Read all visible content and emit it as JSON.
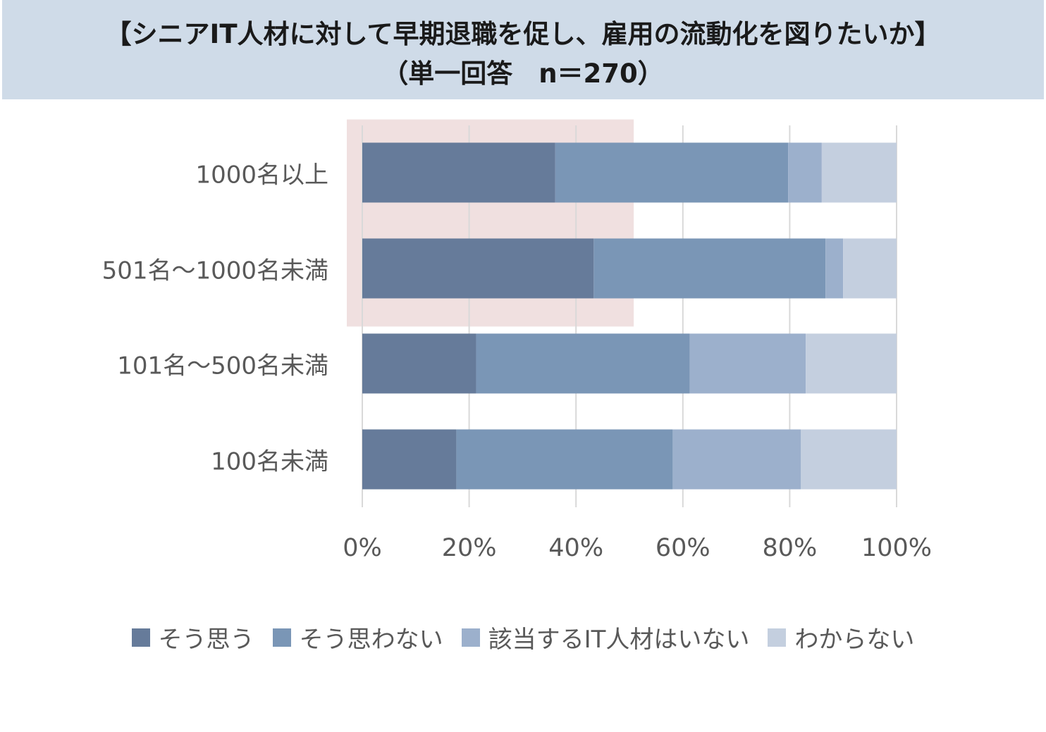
{
  "header": {
    "title_line1": "【シニアIT人材に対して早期退職を促し、雇用の流動化を図りたいか】",
    "title_line2": "（単一回答　n＝270）"
  },
  "colors": {
    "header_bg": "#cfdbe8",
    "highlight": "#f0e0e0",
    "series": [
      "#667b9a",
      "#7a96b6",
      "#9cb0cc",
      "#c4cfdf"
    ],
    "grid": "#d9d9d9"
  },
  "chart_data": {
    "type": "bar",
    "orientation": "horizontal-stacked-100",
    "title": "【シニアIT人材に対して早期退職を促し、雇用の流動化を図りたいか】（単一回答　n＝270）",
    "categories": [
      "1000名以上",
      "501名～1000名未満",
      "101名～500名未満",
      "100名未満"
    ],
    "series": [
      {
        "name": "そう思う",
        "values": [
          36.1,
          43.3,
          21.3,
          17.6
        ]
      },
      {
        "name": "そう思わない",
        "values": [
          43.6,
          43.4,
          40.0,
          40.5
        ]
      },
      {
        "name": "該当するIT人材はいない",
        "values": [
          6.3,
          3.3,
          21.7,
          24.0
        ]
      },
      {
        "name": "わからない",
        "values": [
          14.0,
          10.0,
          17.0,
          17.9
        ]
      }
    ],
    "xlim": [
      0,
      100
    ],
    "x_ticks": [
      "0%",
      "20%",
      "40%",
      "60%",
      "80%",
      "100%"
    ],
    "grid": true,
    "legend_position": "bottom",
    "highlight_categories": [
      "1000名以上",
      "501名～1000名未満"
    ]
  }
}
